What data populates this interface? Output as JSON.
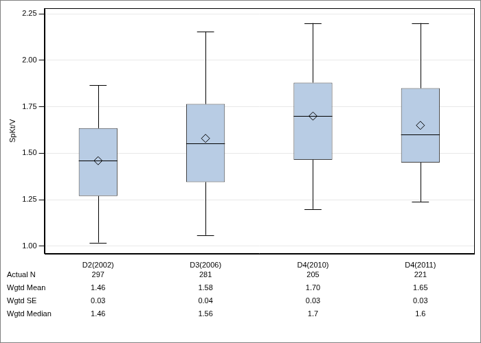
{
  "chart_data": {
    "type": "box",
    "y_label": "SpKt/V",
    "categories": [
      "D2(2002)",
      "D3(2006)",
      "D4(2010)",
      "D4(2011)"
    ],
    "boxes": {
      "min": [
        1.02,
        1.06,
        1.2,
        1.24
      ],
      "q1": [
        1.27,
        1.345,
        1.465,
        1.45
      ],
      "median": [
        1.46,
        1.555,
        1.7,
        1.6
      ],
      "q3": [
        1.635,
        1.765,
        1.88,
        1.85
      ],
      "max": [
        1.865,
        2.155,
        2.2,
        2.2
      ],
      "mean": [
        1.46,
        1.58,
        1.7,
        1.65
      ]
    },
    "color": "#b8cce4",
    "ylim": [
      0.96,
      2.28
    ],
    "yticks": [
      {
        "value": 1.0,
        "label": "1.00"
      },
      {
        "value": 1.25,
        "label": "1.25"
      },
      {
        "value": 1.5,
        "label": "1.50"
      },
      {
        "value": 1.75,
        "label": "1.75"
      },
      {
        "value": 2.0,
        "label": "2.00"
      },
      {
        "value": 2.25,
        "label": "2.25"
      }
    ],
    "grid": true,
    "table": {
      "rows": [
        {
          "label": "Actual N",
          "values": [
            "297",
            "281",
            "205",
            "221"
          ]
        },
        {
          "label": "Wgtd Mean",
          "values": [
            "1.46",
            "1.58",
            "1.70",
            "1.65"
          ]
        },
        {
          "label": "Wgtd SE",
          "values": [
            "0.03",
            "0.04",
            "0.03",
            "0.03"
          ]
        },
        {
          "label": "Wgtd Median",
          "values": [
            "1.46",
            "1.56",
            "1.7",
            "1.6"
          ]
        }
      ]
    }
  }
}
